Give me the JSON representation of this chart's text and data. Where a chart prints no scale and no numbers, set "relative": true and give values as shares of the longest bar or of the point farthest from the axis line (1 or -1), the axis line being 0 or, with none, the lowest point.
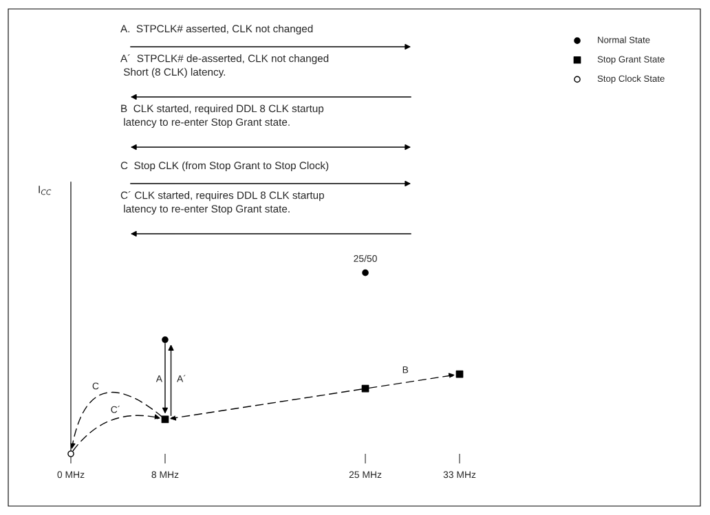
{
  "chart_data": {
    "type": "scatter",
    "relative": true,
    "xticks": [
      {
        "value": 0,
        "label": "0 MHz"
      },
      {
        "value": 8,
        "label": "8 MHz"
      },
      {
        "value": 25,
        "label": "25 MHz"
      },
      {
        "value": 33,
        "label": "33 MHz"
      }
    ],
    "xlim": [
      0,
      33
    ],
    "legend": "top right",
    "grid": false,
    "series": [
      {
        "name": "Normal State",
        "color": "#000000",
        "marker": "circle",
        "x": [
          8,
          25
        ],
        "values": [
          0.63,
          1
        ]
      },
      {
        "name": "Stop Grant State",
        "color": "#000000",
        "marker": "square",
        "x": [
          8,
          25,
          33
        ],
        "values": [
          0.19,
          0.36,
          0.44
        ]
      },
      {
        "name": "Stop Clock State",
        "color": "#ffffff",
        "marker": "circle",
        "x": [
          0
        ],
        "values": [
          0
        ]
      }
    ],
    "annotations": [
      "A.  STPCLK# asserted, CLK not changed",
      "A´  STPCLK# de-asserted, CLK not changed\n Short (8 CLK) latency.",
      "B  CLK started, required DDL 8 CLK startup\n latency to re-enter Stop Grant state.",
      "C  Stop CLK (from Stop Grant to Stop Clock)",
      "C´ CLK started, requires DDL 8 CLK startup\n latency to re-enter Stop Grant state.",
      {
        "text": "25/50",
        "x": 25,
        "y": 1
      },
      "A",
      "A´",
      "C",
      "C´",
      "B",
      "I$_{CC}$"
    ]
  }
}
